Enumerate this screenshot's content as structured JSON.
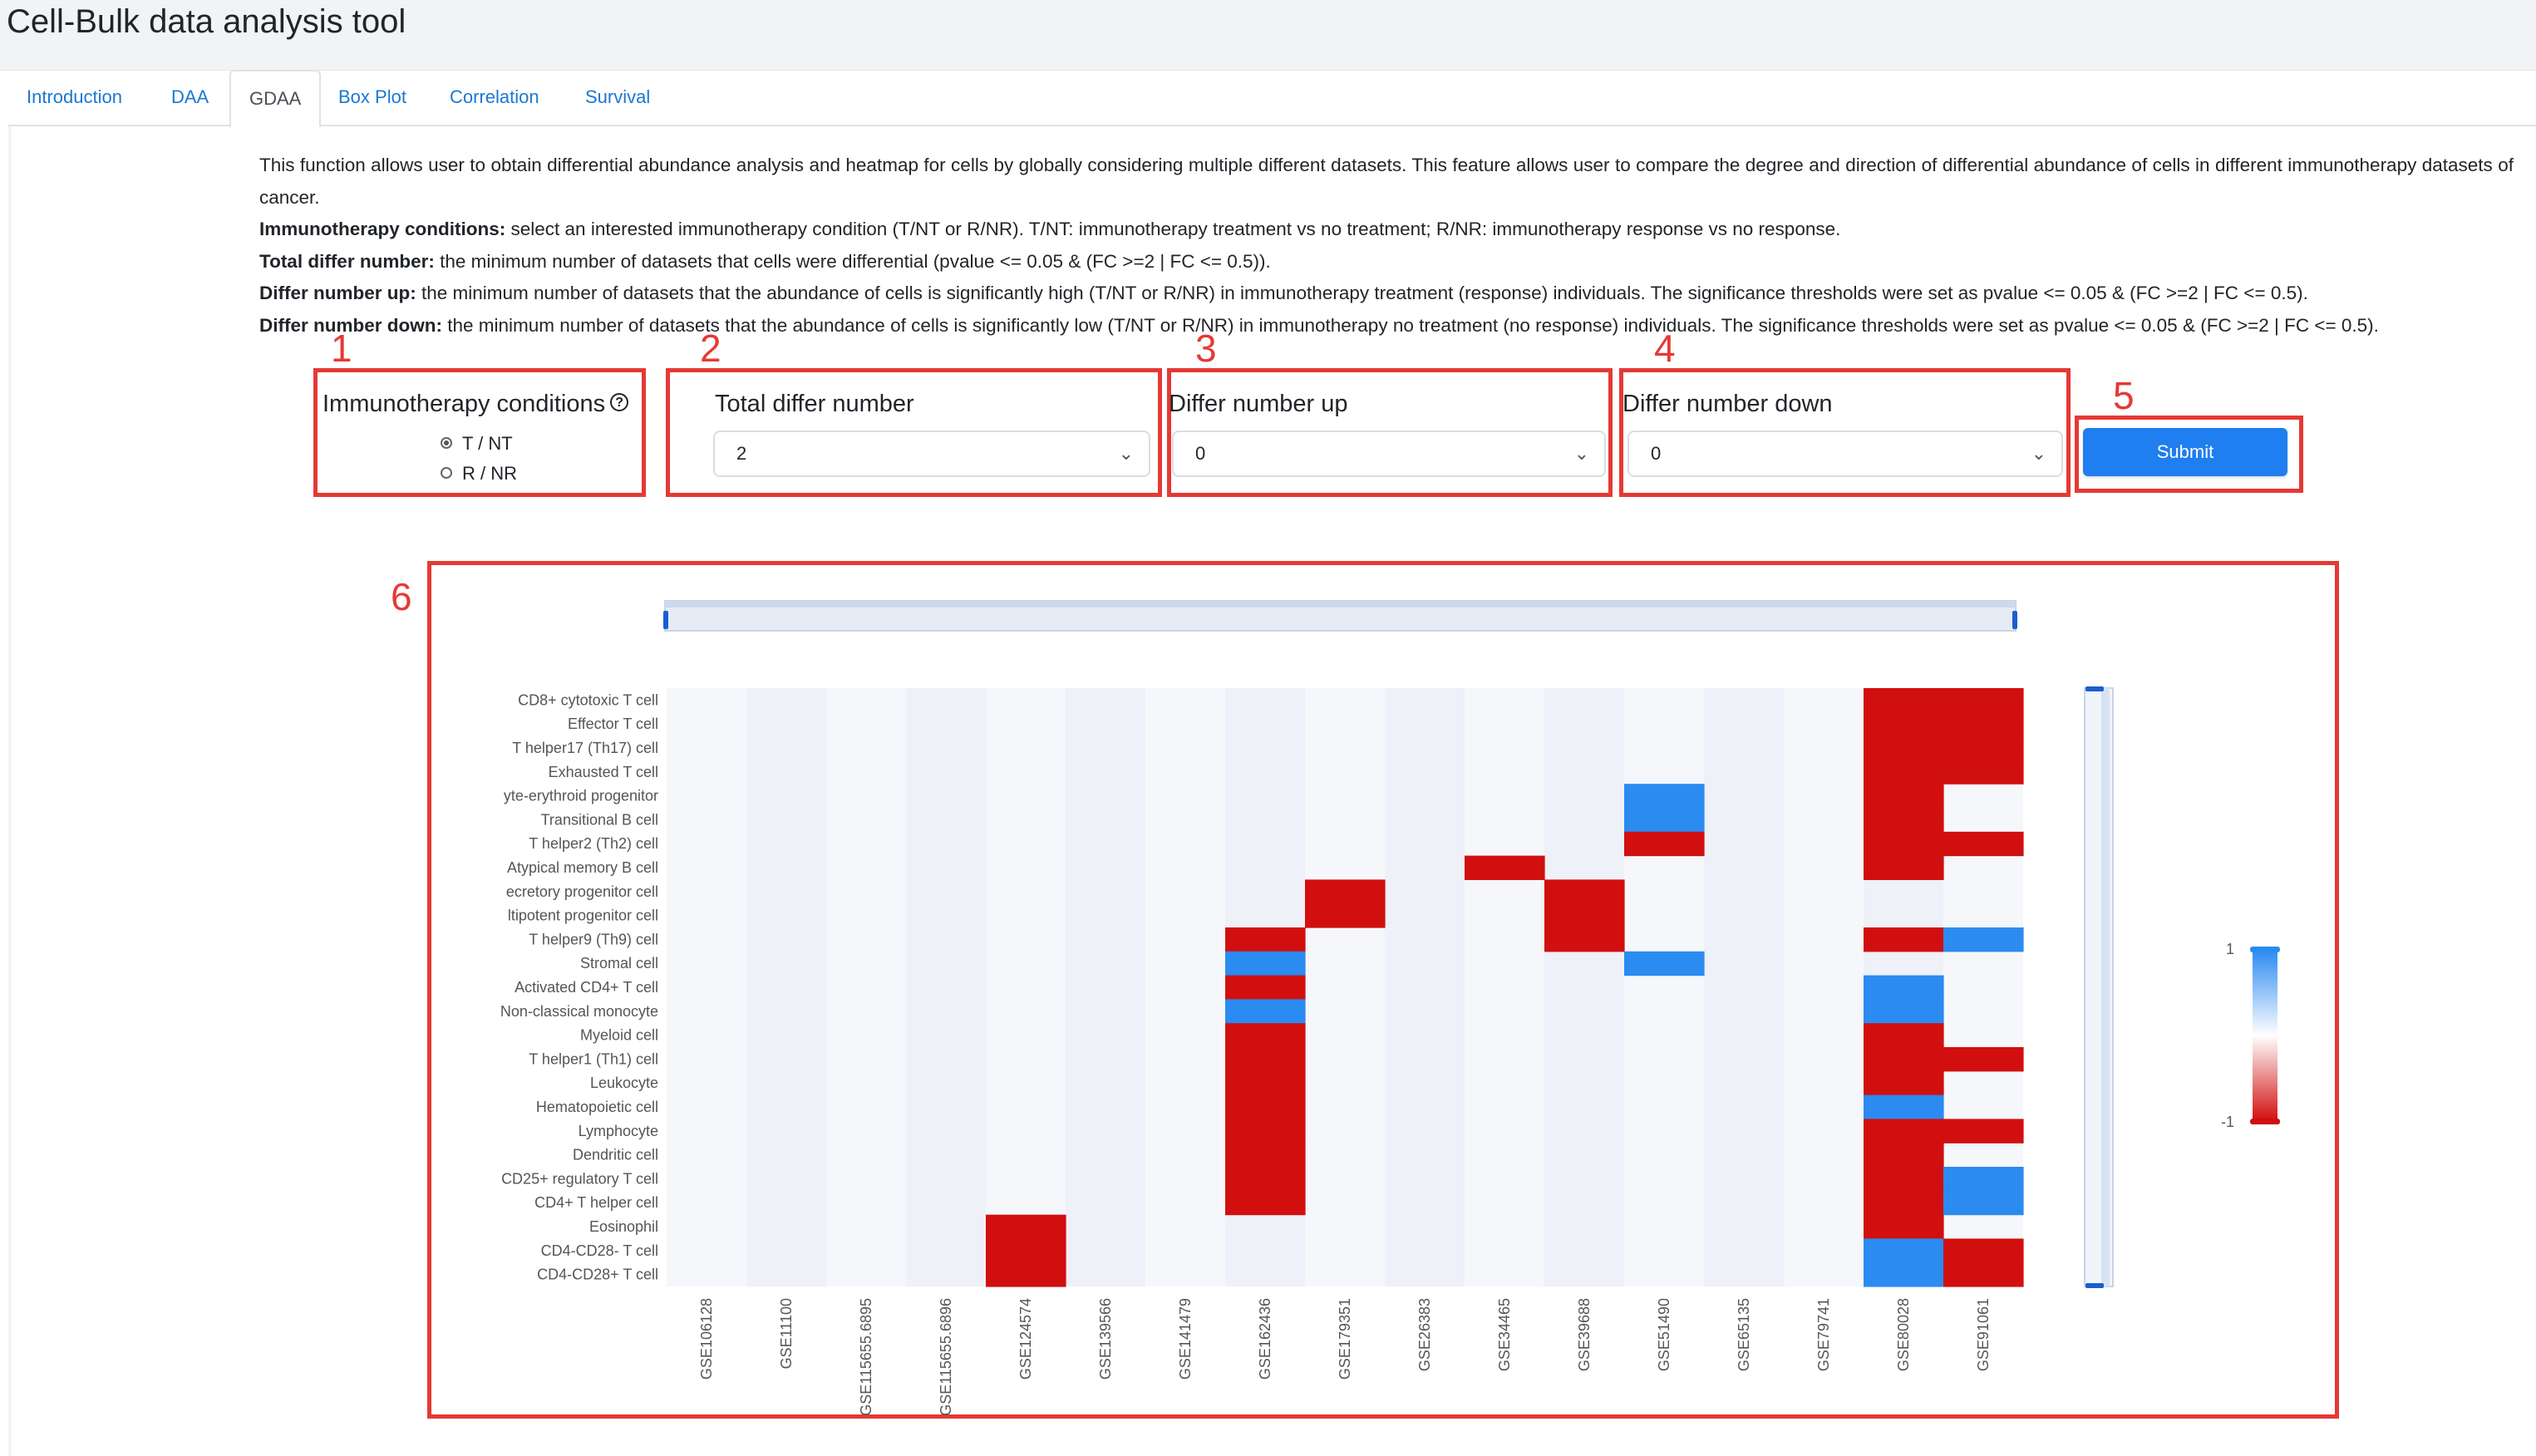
{
  "app": {
    "title": "Cell-Bulk data analysis tool"
  },
  "tabs": [
    {
      "label": "Introduction",
      "active": false
    },
    {
      "label": "DAA",
      "active": false
    },
    {
      "label": "GDAA",
      "active": true
    },
    {
      "label": "Box Plot",
      "active": false
    },
    {
      "label": "Correlation",
      "active": false
    },
    {
      "label": "Survival",
      "active": false
    }
  ],
  "description": {
    "intro": "This function allows user to obtain differential abundance analysis and heatmap for cells by globally considering multiple different datasets. This feature allows user to compare the degree and direction of differential abundance of cells in different immunotherapy datasets of cancer.",
    "items": [
      {
        "term": "Immunotherapy conditions:",
        "text": " select an interested immunotherapy condition (T/NT or R/NR). T/NT: immunotherapy treatment vs no treatment; R/NR: immunotherapy response vs no response."
      },
      {
        "term": "Total differ number:",
        "text": " the minimum number of datasets that cells were differential (pvalue <= 0.05 & (FC >=2 | FC <= 0.5))."
      },
      {
        "term": "Differ number up:",
        "text": " the minimum number of datasets that the abundance of cells is significantly high (T/NT or R/NR) in immunotherapy treatment (response) individuals. The significance thresholds were set as pvalue <= 0.05 & (FC >=2 | FC <= 0.5)."
      },
      {
        "term": "Differ number down:",
        "text": " the minimum number of datasets that the abundance of cells is significantly low (T/NT or R/NR) in immunotherapy no treatment (no response) individuals. The significance thresholds were set as pvalue <= 0.05 & (FC >=2 | FC <= 0.5)."
      }
    ]
  },
  "annotations": [
    "1",
    "2",
    "3",
    "4",
    "5",
    "6"
  ],
  "controls": {
    "immunotherapy": {
      "label": "Immunotherapy conditions",
      "help_icon": "question-circle-icon",
      "options": [
        {
          "label": "T / NT",
          "selected": true
        },
        {
          "label": "R / NR",
          "selected": false
        }
      ]
    },
    "total_differ": {
      "label": "Total differ number",
      "value": "2"
    },
    "differ_up": {
      "label": "Differ number up",
      "value": "0"
    },
    "differ_down": {
      "label": "Differ number down",
      "value": "0"
    },
    "submit_label": "Submit"
  },
  "colors": {
    "annotation": "#e53935",
    "high": "#d10f0f",
    "low": "#2b8bf0",
    "neutral": "#f1f3f8",
    "primary": "#1f7ef0",
    "link": "#1b78d0"
  },
  "chart_data": {
    "type": "heatmap",
    "rows": [
      "CD8+ cytotoxic T cell",
      "Effector T cell",
      "T helper17 (Th17) cell",
      "Exhausted T cell",
      "yte-erythroid progenitor",
      "Transitional B cell",
      "T helper2 (Th2) cell",
      "Atypical memory B cell",
      "ecretory progenitor cell",
      "ltipotent progenitor cell",
      "T helper9 (Th9) cell",
      "Stromal cell",
      "Activated CD4+ T cell",
      "Non-classical monocyte",
      "Myeloid cell",
      "T helper1 (Th1) cell",
      "Leukocyte",
      "Hematopoietic cell",
      "Lymphocyte",
      "Dendritic cell",
      "CD25+ regulatory T cell",
      "CD4+ T helper cell",
      "Eosinophil",
      "CD4-CD28- T cell",
      "CD4-CD28+ T cell"
    ],
    "columns": [
      "GSE106128",
      "GSE11100",
      "GSE115655.6895",
      "GSE115655.6896",
      "GSE124574",
      "GSE139566",
      "GSE141479",
      "GSE162436",
      "GSE179351",
      "GSE26383",
      "GSE34465",
      "GSE39688",
      "GSE51490",
      "GSE65135",
      "GSE79741",
      "GSE80028",
      "GSE91061"
    ],
    "values": [
      [
        0,
        0,
        0,
        0,
        0,
        0,
        0,
        0,
        0,
        0,
        0,
        0,
        0,
        0,
        0,
        1,
        1
      ],
      [
        0,
        0,
        0,
        0,
        0,
        0,
        0,
        0,
        0,
        0,
        0,
        0,
        0,
        0,
        0,
        1,
        1
      ],
      [
        0,
        0,
        0,
        0,
        0,
        0,
        0,
        0,
        0,
        0,
        0,
        0,
        0,
        0,
        0,
        1,
        1
      ],
      [
        0,
        0,
        0,
        0,
        0,
        0,
        0,
        0,
        0,
        0,
        0,
        0,
        0,
        0,
        0,
        1,
        1
      ],
      [
        0,
        0,
        0,
        0,
        0,
        0,
        0,
        0,
        0,
        0,
        0,
        0,
        -1,
        0,
        0,
        1,
        0
      ],
      [
        0,
        0,
        0,
        0,
        0,
        0,
        0,
        0,
        0,
        0,
        0,
        0,
        -1,
        0,
        0,
        1,
        0
      ],
      [
        0,
        0,
        0,
        0,
        0,
        0,
        0,
        0,
        0,
        0,
        0,
        0,
        1,
        0,
        0,
        1,
        1
      ],
      [
        0,
        0,
        0,
        0,
        0,
        0,
        0,
        0,
        0,
        0,
        1,
        0,
        0,
        0,
        0,
        1,
        0
      ],
      [
        0,
        0,
        0,
        0,
        0,
        0,
        0,
        0,
        1,
        0,
        0,
        1,
        0,
        0,
        0,
        0,
        0
      ],
      [
        0,
        0,
        0,
        0,
        0,
        0,
        0,
        0,
        1,
        0,
        0,
        1,
        0,
        0,
        0,
        0,
        0
      ],
      [
        0,
        0,
        0,
        0,
        0,
        0,
        0,
        1,
        0,
        0,
        0,
        1,
        0,
        0,
        0,
        1,
        -1
      ],
      [
        0,
        0,
        0,
        0,
        0,
        0,
        0,
        -1,
        0,
        0,
        0,
        0,
        -1,
        0,
        0,
        0,
        0
      ],
      [
        0,
        0,
        0,
        0,
        0,
        0,
        0,
        1,
        0,
        0,
        0,
        0,
        0,
        0,
        0,
        -1,
        0
      ],
      [
        0,
        0,
        0,
        0,
        0,
        0,
        0,
        -1,
        0,
        0,
        0,
        0,
        0,
        0,
        0,
        -1,
        0
      ],
      [
        0,
        0,
        0,
        0,
        0,
        0,
        0,
        1,
        0,
        0,
        0,
        0,
        0,
        0,
        0,
        1,
        0
      ],
      [
        0,
        0,
        0,
        0,
        0,
        0,
        0,
        1,
        0,
        0,
        0,
        0,
        0,
        0,
        0,
        1,
        1
      ],
      [
        0,
        0,
        0,
        0,
        0,
        0,
        0,
        1,
        0,
        0,
        0,
        0,
        0,
        0,
        0,
        1,
        0
      ],
      [
        0,
        0,
        0,
        0,
        0,
        0,
        0,
        1,
        0,
        0,
        0,
        0,
        0,
        0,
        0,
        -1,
        0
      ],
      [
        0,
        0,
        0,
        0,
        0,
        0,
        0,
        1,
        0,
        0,
        0,
        0,
        0,
        0,
        0,
        1,
        1
      ],
      [
        0,
        0,
        0,
        0,
        0,
        0,
        0,
        1,
        0,
        0,
        0,
        0,
        0,
        0,
        0,
        1,
        0
      ],
      [
        0,
        0,
        0,
        0,
        0,
        0,
        0,
        1,
        0,
        0,
        0,
        0,
        0,
        0,
        0,
        1,
        -1
      ],
      [
        0,
        0,
        0,
        0,
        0,
        0,
        0,
        1,
        0,
        0,
        0,
        0,
        0,
        0,
        0,
        1,
        -1
      ],
      [
        0,
        0,
        0,
        0,
        1,
        0,
        0,
        0,
        0,
        0,
        0,
        0,
        0,
        0,
        0,
        1,
        0
      ],
      [
        0,
        0,
        0,
        0,
        1,
        0,
        0,
        0,
        0,
        0,
        0,
        0,
        0,
        0,
        0,
        -1,
        1
      ],
      [
        0,
        0,
        0,
        0,
        1,
        0,
        0,
        0,
        0,
        0,
        0,
        0,
        0,
        0,
        0,
        -1,
        1
      ]
    ],
    "scale": {
      "max_label": "1",
      "min_label": "-1",
      "range": [
        -1,
        1
      ]
    },
    "legend": "right",
    "grid": false
  }
}
